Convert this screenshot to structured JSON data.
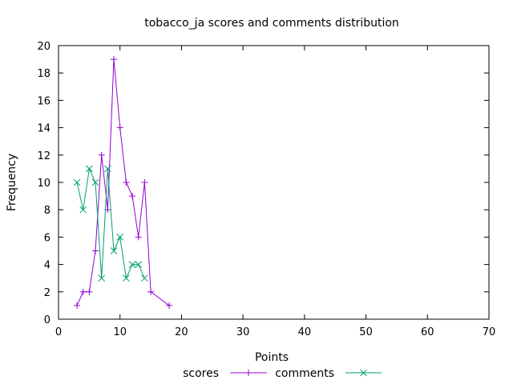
{
  "chart_data": {
    "type": "line",
    "title": "tobacco_ja scores and comments distribution",
    "xlabel": "Points",
    "ylabel": "Frequency",
    "xlim": [
      0,
      70
    ],
    "ylim": [
      0,
      20
    ],
    "xticks": [
      0,
      10,
      20,
      30,
      40,
      50,
      60,
      70
    ],
    "yticks": [
      0,
      2,
      4,
      6,
      8,
      10,
      12,
      14,
      16,
      18,
      20
    ],
    "grid": false,
    "legend_position": "bottom-center",
    "series": [
      {
        "name": "scores",
        "color": "#9400d3",
        "marker": "plus",
        "points": [
          [
            3,
            1
          ],
          [
            4,
            2
          ],
          [
            5,
            2
          ],
          [
            6,
            5
          ],
          [
            7,
            12
          ],
          [
            8,
            8
          ],
          [
            9,
            19
          ],
          [
            10,
            14
          ],
          [
            11,
            10
          ],
          [
            12,
            9
          ],
          [
            13,
            6
          ],
          [
            14,
            10
          ],
          [
            15,
            2
          ],
          [
            18,
            1
          ]
        ]
      },
      {
        "name": "comments",
        "color": "#009e73",
        "marker": "cross",
        "points": [
          [
            3,
            10
          ],
          [
            4,
            8
          ],
          [
            5,
            11
          ],
          [
            6,
            10
          ],
          [
            7,
            3
          ],
          [
            8,
            11
          ],
          [
            9,
            5
          ],
          [
            10,
            6
          ],
          [
            11,
            3
          ],
          [
            12,
            4
          ],
          [
            13,
            4
          ],
          [
            14,
            3
          ]
        ]
      }
    ]
  }
}
